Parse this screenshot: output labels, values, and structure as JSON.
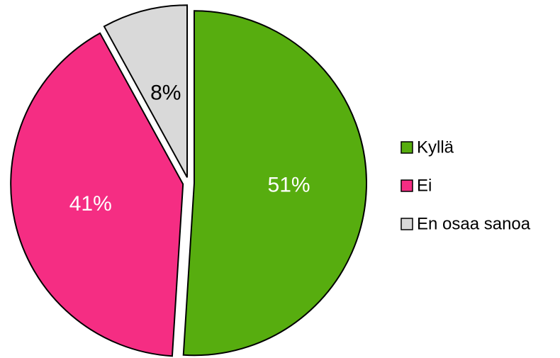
{
  "chart_data": {
    "type": "pie",
    "categories": [
      "Kyllä",
      "Ei",
      "En osaa sanoa"
    ],
    "values": [
      51,
      41,
      8
    ],
    "value_labels": [
      "51%",
      "41%",
      "8%"
    ],
    "colors": [
      "#57ad0f",
      "#f52d83",
      "#d9d9d9"
    ],
    "legend": "right"
  }
}
